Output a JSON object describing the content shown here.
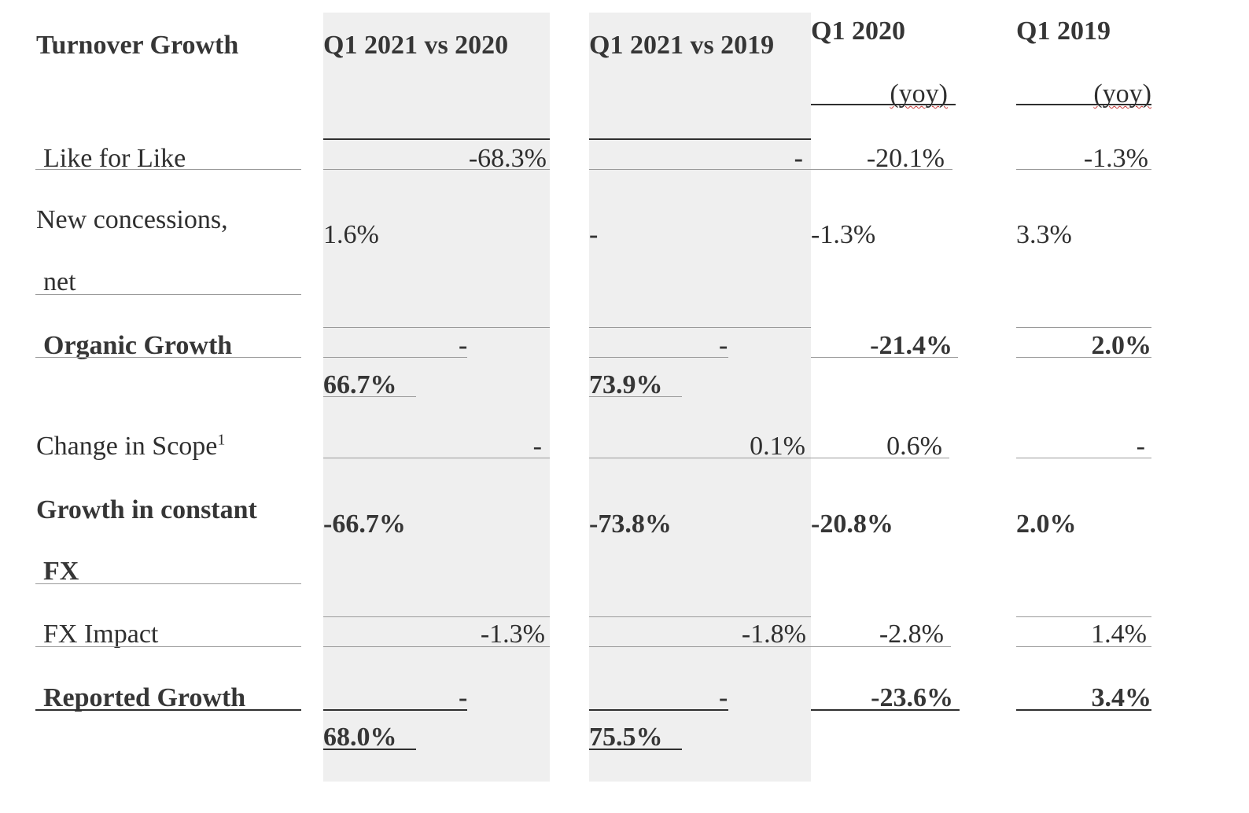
{
  "table": {
    "headers": {
      "label": "Turnover Growth",
      "col1": "Q1 2021 vs 2020",
      "col2": "Q1 2021 vs 2019",
      "col3": "Q1 2020",
      "col3_sub": "(yoy)",
      "col4": "Q1 2019",
      "col4_sub": "(yoy)"
    },
    "rows": [
      {
        "label": "Like for Like",
        "c1": "-68.3%",
        "c2": "-",
        "c3": "-20.1%",
        "c4": "-1.3%"
      },
      {
        "label_line1": "New concessions,",
        "label_line2": "net",
        "c1": "1.6%",
        "c2": "-",
        "c3": "-1.3%",
        "c4": "3.3%"
      },
      {
        "label": "Organic Growth",
        "c1_line1": "-",
        "c1_line2": "66.7%",
        "c2_line1": "-",
        "c2_line2": "73.9%",
        "c3": "-21.4%",
        "c4": "2.0%"
      },
      {
        "label": "Change in Scope",
        "label_sup": "1",
        "c1": "-",
        "c2": "0.1%",
        "c3": "0.6%",
        "c4": "-"
      },
      {
        "label_line1": "Growth in constant",
        "label_line2": "FX",
        "c1": "-66.7%",
        "c2": "-73.8%",
        "c3": "-20.8%",
        "c4": "2.0%"
      },
      {
        "label": "FX Impact",
        "c1": "-1.3%",
        "c2": "-1.8%",
        "c3": "-2.8%",
        "c4": "1.4%"
      },
      {
        "label": "Reported Growth",
        "c1_line1": "-",
        "c1_line2": "68.0%",
        "c2_line1": "-",
        "c2_line2": "75.5%",
        "c3": "-23.6%",
        "c4": "3.4%"
      }
    ]
  },
  "colors": {
    "shaded_column": "#efefef",
    "text": "#2f2f2f",
    "rule": "#9a9a9a"
  }
}
